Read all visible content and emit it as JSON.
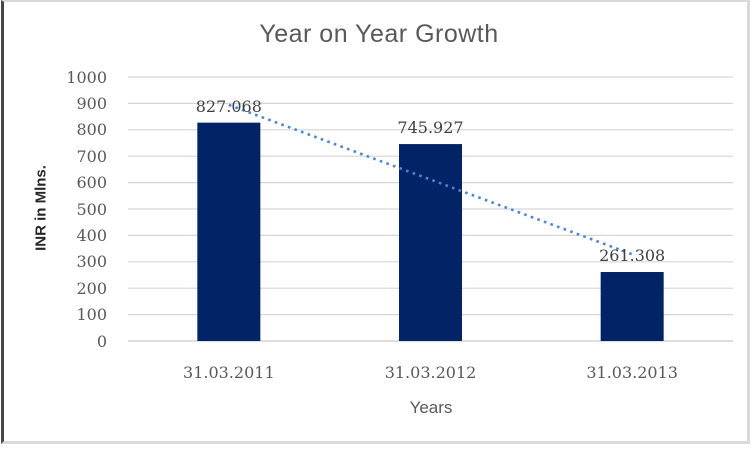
{
  "chart_data": {
    "type": "bar",
    "title": "Year on Year Growth",
    "categories": [
      "31.03.2011",
      "31.03.2012",
      "31.03.2013"
    ],
    "values": [
      827.068,
      745.927,
      261.308
    ],
    "data_labels": [
      "827.068",
      "745.927",
      "261.308"
    ],
    "xlabel": "Years",
    "ylabel": "INR in Mlns.",
    "ylim": [
      0,
      1000
    ],
    "ytick_step": 100,
    "grid": true,
    "legend_position": "none",
    "bar_color": "#022366",
    "trendline": {
      "type": "linear",
      "style": "dotted",
      "color": "#4a86d8",
      "value_at_first_category": 894.3,
      "value_at_last_category": 328.6
    }
  },
  "colors": {
    "title_text": "#595959",
    "tick_text": "#595959",
    "data_label_text": "#3f3f3f",
    "axis_title_text": "#262626",
    "gridline": "#d6d6d6",
    "axis_line": "#c9c9c9",
    "frame_border_light": "#d9d9d9",
    "frame_border_dark": "#474747",
    "background": "#ffffff"
  }
}
